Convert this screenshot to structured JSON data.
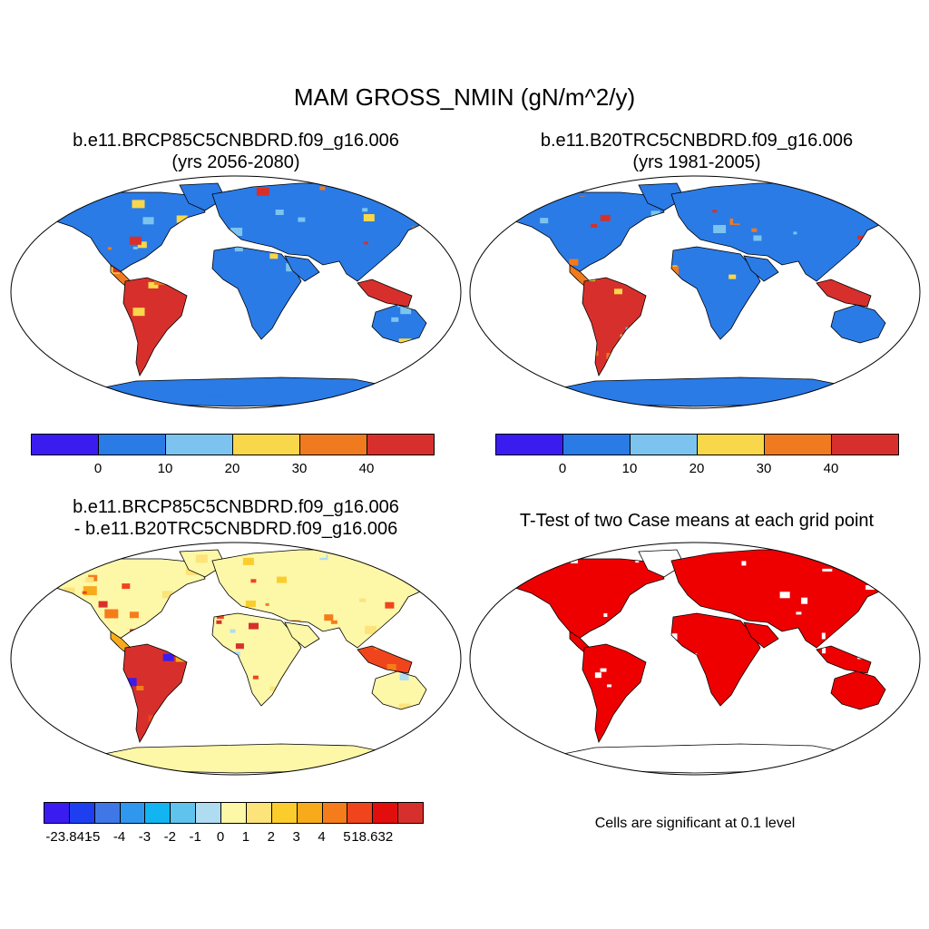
{
  "title": "MAM GROSS_NMIN (gN/m^2/y)",
  "panels": {
    "top_left": {
      "line1": "b.e11.BRCP85C5CNBDRD.f09_g16.006",
      "line2": "(yrs 2056-2080)"
    },
    "top_right": {
      "line1": "b.e11.B20TRC5CNBDRD.f09_g16.006",
      "line2": "(yrs 1981-2005)"
    },
    "bottom_left": {
      "line1": "b.e11.BRCP85C5CNBDRD.f09_g16.006",
      "line2": "- b.e11.B20TRC5CNBDRD.f09_g16.006"
    },
    "bottom_right": {
      "line1": "T-Test of two Case means at each grid point",
      "note": "Cells are significant at 0.1 level"
    }
  },
  "colorbars": {
    "absolute": {
      "colors": [
        "#3a1cf0",
        "#2a7be6",
        "#7cc4ef",
        "#f8d74a",
        "#f07a1e",
        "#d7302c"
      ],
      "ticks": [
        "0",
        "10",
        "20",
        "30",
        "40"
      ]
    },
    "difference": {
      "colors": [
        "#3a1cf0",
        "#1d3ff0",
        "#3f78e6",
        "#2f98ee",
        "#12b5f2",
        "#5fc3ee",
        "#b0dcf2",
        "#fdf7a8",
        "#fce37a",
        "#fbcd2c",
        "#f8ab1a",
        "#f57c1a",
        "#f0451c",
        "#e20e0e",
        "#d7302c"
      ],
      "ticks": [
        "-23.841",
        "-5",
        "-4",
        "-3",
        "-2",
        "-1",
        "0",
        "1",
        "2",
        "3",
        "4",
        "5",
        "18.632"
      ]
    }
  },
  "colors": {
    "ocean": "#ffffff",
    "land_outline": "#000000",
    "significance": "#ee0000"
  }
}
